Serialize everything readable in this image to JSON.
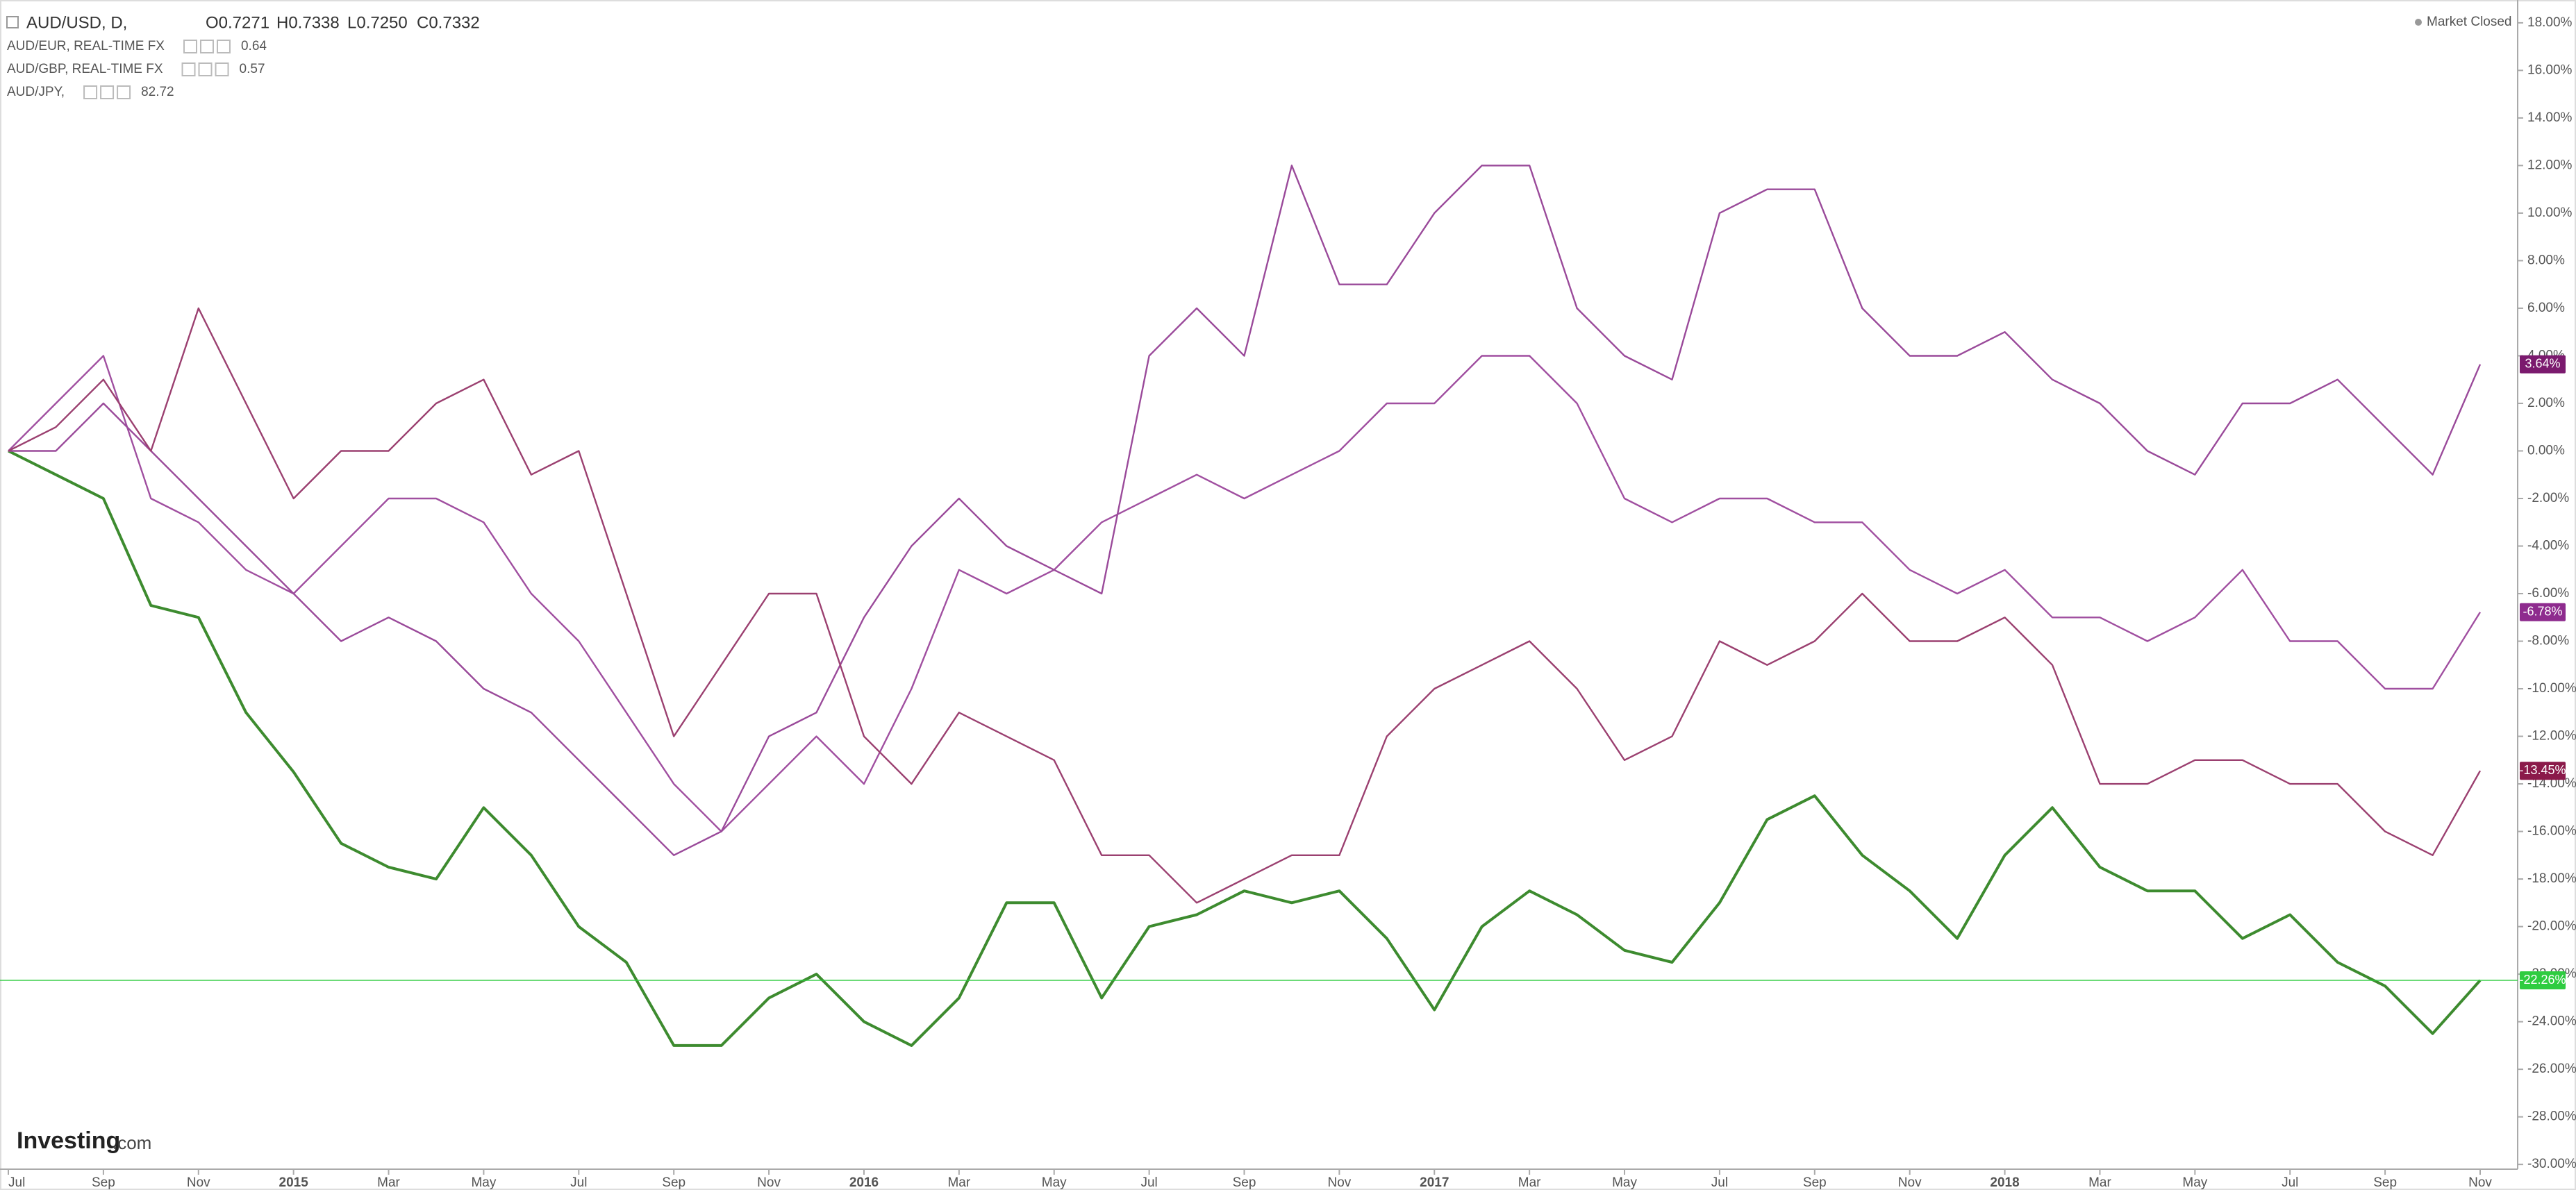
{
  "header": {
    "ohlc": [
      "O0.7271",
      "H0.7338",
      "L0.7250",
      "C0.7332"
    ],
    "status": "Market Closed",
    "logo": "Investing",
    "logo_suffix": ".com"
  },
  "chart_data": {
    "type": "line",
    "categories": [
      "Jul",
      null,
      "Sep",
      null,
      "Nov",
      null,
      "2015",
      null,
      "Mar",
      null,
      "May",
      null,
      "Jul",
      null,
      "Sep",
      null,
      "Nov",
      null,
      "2016",
      null,
      "Mar",
      null,
      "May",
      null,
      "Jul",
      null,
      "Sep",
      null,
      "Nov",
      null,
      "2017",
      null,
      "Mar",
      null,
      "May",
      null,
      "Jul",
      null,
      "Sep",
      null,
      "Nov",
      null,
      "2018",
      null,
      "Mar",
      null,
      "May",
      null,
      "Jul",
      null,
      "Sep",
      null,
      "Nov"
    ],
    "ylim": [
      -30.2,
      18.96
    ],
    "yticks": [
      {
        "value": 18,
        "label": "18.00%"
      },
      {
        "value": 16,
        "label": "16.00%"
      },
      {
        "value": 14,
        "label": "14.00%"
      },
      {
        "value": 12,
        "label": "12.00%"
      },
      {
        "value": 10,
        "label": "10.00%"
      },
      {
        "value": 8,
        "label": "8.00%"
      },
      {
        "value": 6,
        "label": "6.00%"
      },
      {
        "value": 4,
        "label": "4.00%"
      },
      {
        "value": 2,
        "label": "2.00%"
      },
      {
        "value": 0,
        "label": "0.00%"
      },
      {
        "value": -2,
        "label": "-2.00%"
      },
      {
        "value": -4,
        "label": "-4.00%"
      },
      {
        "value": -6,
        "label": "-6.00%"
      },
      {
        "value": -8,
        "label": "-8.00%"
      },
      {
        "value": -10,
        "label": "-10.00%"
      },
      {
        "value": -12,
        "label": "-12.00%"
      },
      {
        "value": -14,
        "label": "-14.00%"
      },
      {
        "value": -16,
        "label": "-16.00%"
      },
      {
        "value": -18,
        "label": "-18.00%"
      },
      {
        "value": -20,
        "label": "-20.00%"
      },
      {
        "value": -22,
        "label": "-22.00%"
      },
      {
        "value": -24,
        "label": "-24.00%"
      },
      {
        "value": -26,
        "label": "-26.00%"
      },
      {
        "value": -28,
        "label": "-28.00%"
      },
      {
        "value": -30,
        "label": "-30.00%"
      }
    ],
    "series": [
      {
        "name": "AUD/USD, D,",
        "color": "#3d8b2f",
        "last_label": "-22.26%",
        "tag_color": "#2ecc40",
        "values": [
          0,
          -1,
          -2,
          -6.5,
          -7,
          -11,
          -13.5,
          -16.5,
          -17.5,
          -18,
          -15,
          -17,
          -20,
          -21.5,
          -25,
          -25,
          -23,
          -22,
          -24,
          -25,
          -23,
          -19,
          -19,
          -23,
          -20,
          -19.5,
          -18.5,
          -19,
          -18.5,
          -20.5,
          -23.5,
          -20,
          -18.5,
          -19.5,
          -21,
          -21.5,
          -19,
          -15.5,
          -14.5,
          -17,
          -18.5,
          -20.5,
          -17,
          -15,
          -17.5,
          -18.5,
          -18.5,
          -20.5,
          -19.5,
          -21.5,
          -22.5,
          -24.5,
          -22.26
        ]
      },
      {
        "name": "AUD/EUR, REAL-TIME FX",
        "price": "0.64",
        "color": "#a04fa0",
        "last_label": "-6.78%",
        "tag_color": "#8e2b8e",
        "values": [
          0,
          2,
          4,
          -2,
          -3,
          -5,
          -6,
          -4,
          -2,
          -2,
          -3,
          -6,
          -8,
          -11,
          -14,
          -16,
          -14,
          -12,
          -14,
          -10,
          -5,
          -6,
          -5,
          -3,
          -2,
          -1,
          -2,
          -1,
          0,
          2,
          2,
          4,
          4,
          2,
          -2,
          -3,
          -2,
          -2,
          -3,
          -3,
          -5,
          -6,
          -5,
          -7,
          -7,
          -8,
          -7,
          -5,
          -8,
          -8,
          -10,
          -10,
          -6.78
        ]
      },
      {
        "name": "AUD/GBP, REAL-TIME FX",
        "price": "0.57",
        "color": "#9a4a9a",
        "last_label": "3.64%",
        "tag_color": "#7b1a6e",
        "values": [
          0,
          0,
          2,
          0,
          -2,
          -4,
          -6,
          -8,
          -7,
          -8,
          -10,
          -11,
          -13,
          -15,
          -17,
          -16,
          -12,
          -11,
          -7,
          -4,
          -2,
          -4,
          -5,
          -6,
          4,
          6,
          4,
          12,
          7,
          7,
          10,
          12,
          12,
          6,
          4,
          3,
          10,
          11,
          11,
          6,
          4,
          4,
          5,
          3,
          2,
          0,
          -1,
          2,
          2,
          3,
          1,
          -1,
          3.64
        ]
      },
      {
        "name": "AUD/JPY,",
        "price": "82.72",
        "color": "#9b4070",
        "last_label": "-13.45%",
        "tag_color": "#8b1a4a",
        "values": [
          0,
          1,
          3,
          0,
          6,
          2,
          -2,
          0,
          0,
          2,
          3,
          -1,
          0,
          -6,
          -12,
          -9,
          -6,
          -6,
          -12,
          -14,
          -11,
          -12,
          -13,
          -17,
          -17,
          -19,
          -18,
          -17,
          -17,
          -12,
          -10,
          -9,
          -8,
          -10,
          -13,
          -12,
          -8,
          -9,
          -8,
          -6,
          -8,
          -8,
          -7,
          -9,
          -14,
          -14,
          -13,
          -13,
          -14,
          -14,
          -16,
          -17,
          -13.45
        ]
      }
    ]
  }
}
